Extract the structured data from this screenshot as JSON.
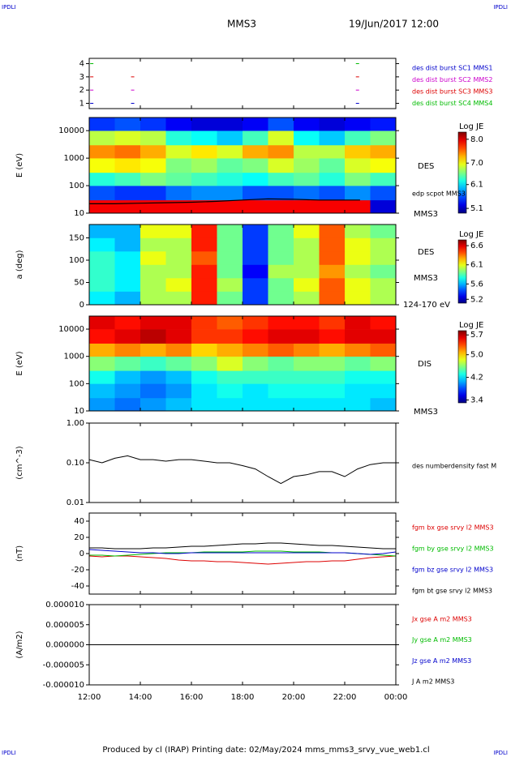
{
  "corner_labels": [
    "IPDLI",
    "IPDLI",
    "IPDLI",
    "IPDLI"
  ],
  "title": "MMS3",
  "date": "19/Jun/2017 12:00",
  "footer": "Produced by cl (IRAP)   Printing date: 02/May/2024   mms_mms3_srvy_vue_web1.cl",
  "time_axis": {
    "xlim": [
      12,
      24
    ],
    "xticks": [
      {
        "value": 12,
        "label": "12:00"
      },
      {
        "value": 14,
        "label": "14:00"
      },
      {
        "value": 16,
        "label": "16:00"
      },
      {
        "value": 18,
        "label": "18:00"
      },
      {
        "value": 20,
        "label": "20:00"
      },
      {
        "value": 22,
        "label": "22:00"
      },
      {
        "value": 24,
        "label": "00:00"
      }
    ]
  },
  "chart_data": [
    {
      "type": "event",
      "ylim": [
        0.6,
        4.4
      ],
      "yticks": [
        1,
        2,
        3,
        4
      ],
      "series": [
        {
          "name": "des dist burst SC1 MMS1",
          "color": "#0000cc",
          "level": 1,
          "x": [
            12.1,
            13.7,
            22.5
          ]
        },
        {
          "name": "des dist burst SC2 MMS2",
          "color": "#cc00cc",
          "level": 2,
          "x": [
            12.1,
            13.7,
            22.5
          ]
        },
        {
          "name": "des dist burst SC3 MMS3",
          "color": "#dd0000",
          "level": 3,
          "x": [
            12.1,
            13.7,
            22.5
          ]
        },
        {
          "name": "des dist burst SC4 MMS4",
          "color": "#00bb00",
          "level": 4,
          "x": [
            12.1,
            22.5
          ]
        }
      ]
    },
    {
      "type": "heatmap",
      "y_label": "E (eV)",
      "log": true,
      "colormap": "jet",
      "ylim": [
        10,
        30000
      ],
      "yticks": [
        10,
        100,
        1000,
        10000
      ],
      "labels": [
        "DES",
        "MMS3"
      ],
      "colorbar_title": "Log JE",
      "zlim": [
        4.9,
        8.3
      ],
      "zticks": [
        {
          "value": 8,
          "label": "8.0"
        },
        {
          "value": 7,
          "label": "7.0"
        },
        6.1,
        5.1
      ],
      "xbins": [
        12,
        13,
        14,
        15,
        16,
        17,
        18,
        19,
        20,
        21,
        22,
        23,
        24
      ],
      "ybins": [
        10,
        30,
        100,
        300,
        1000,
        3000,
        10000,
        30000
      ],
      "z": [
        [
          7.9,
          7.9,
          7.9,
          7.9,
          7.9,
          7.9,
          7.9,
          7.9,
          7.9,
          7.9,
          7.9,
          5.2
        ],
        [
          5.6,
          5.5,
          5.5,
          5.7,
          5.8,
          5.8,
          5.6,
          5.6,
          5.7,
          5.6,
          5.8,
          5.6
        ],
        [
          6.3,
          6.4,
          6.6,
          6.5,
          6.4,
          6.3,
          6.2,
          6.4,
          6.5,
          6.3,
          6.6,
          6.4
        ],
        [
          7.0,
          7.1,
          7.0,
          6.6,
          6.7,
          6.5,
          6.6,
          6.9,
          6.7,
          6.5,
          6.9,
          7.0
        ],
        [
          7.4,
          7.5,
          7.3,
          6.9,
          7.1,
          6.9,
          7.3,
          7.4,
          6.8,
          6.8,
          7.2,
          7.3
        ],
        [
          6.8,
          6.9,
          6.8,
          6.3,
          6.2,
          6.0,
          6.4,
          6.9,
          6.2,
          6.0,
          6.4,
          6.6
        ],
        [
          5.5,
          5.6,
          5.5,
          5.3,
          5.2,
          5.2,
          5.3,
          5.6,
          5.3,
          5.2,
          5.3,
          5.4
        ]
      ],
      "line": {
        "name": "edp scpot MMS3",
        "color": "#000000",
        "x": [
          12,
          13,
          14,
          15,
          16,
          17,
          18,
          19,
          20,
          21,
          22,
          22.6
        ],
        "values": [
          22,
          22,
          23,
          24,
          25,
          27,
          30,
          33,
          32,
          30,
          30,
          30
        ]
      }
    },
    {
      "type": "heatmap",
      "y_label": "a (deg)",
      "log": false,
      "colormap": "jet",
      "ylim": [
        0,
        180
      ],
      "yticks": [
        0,
        50,
        100,
        150
      ],
      "labels": [
        "DES",
        "MMS3",
        "124-170 eV"
      ],
      "colorbar_title": "Log JE",
      "zlim": [
        5.1,
        6.75
      ],
      "zticks": [
        6.6,
        6.1,
        5.6,
        5.2
      ],
      "xbins": [
        12,
        13,
        14,
        15,
        16,
        17,
        18,
        19,
        20,
        21,
        22,
        23,
        24
      ],
      "ybins": [
        0,
        30,
        60,
        90,
        120,
        150,
        180
      ],
      "z": [
        [
          5.7,
          5.6,
          6.0,
          6.0,
          6.5,
          5.9,
          5.4,
          5.9,
          6.0,
          6.4,
          6.1,
          6.0
        ],
        [
          5.8,
          5.7,
          6.0,
          6.1,
          6.5,
          6.0,
          5.4,
          5.9,
          6.1,
          6.4,
          6.1,
          6.0
        ],
        [
          5.8,
          5.7,
          6.0,
          6.0,
          6.5,
          5.9,
          5.3,
          6.0,
          6.0,
          6.3,
          6.0,
          5.9
        ],
        [
          5.8,
          5.7,
          6.1,
          6.0,
          6.4,
          5.9,
          5.4,
          5.9,
          6.0,
          6.4,
          6.1,
          6.0
        ],
        [
          5.7,
          5.6,
          6.0,
          6.0,
          6.5,
          5.9,
          5.4,
          5.9,
          6.0,
          6.4,
          6.1,
          6.0
        ],
        [
          5.6,
          5.6,
          6.1,
          6.1,
          6.5,
          5.9,
          5.4,
          5.9,
          6.1,
          6.4,
          6.0,
          5.9
        ]
      ]
    },
    {
      "type": "heatmap",
      "y_label": "E (eV)",
      "log": true,
      "colormap": "jet",
      "ylim": [
        10,
        30000
      ],
      "yticks": [
        10,
        100,
        1000,
        10000
      ],
      "labels": [
        "DIS",
        "MMS3"
      ],
      "colorbar_title": "Log JE",
      "zlim": [
        3.3,
        5.85
      ],
      "zticks": [
        5.7,
        {
          "value": 5,
          "label": "5.0"
        },
        4.2,
        3.4
      ],
      "xbins": [
        12,
        13,
        14,
        15,
        16,
        17,
        18,
        19,
        20,
        21,
        22,
        23,
        24
      ],
      "ybins": [
        10,
        30,
        100,
        300,
        1000,
        3000,
        10000,
        30000
      ],
      "z": [
        [
          4.0,
          3.9,
          4.0,
          4.1,
          4.2,
          4.2,
          4.2,
          4.2,
          4.2,
          4.2,
          4.2,
          4.1
        ],
        [
          4.1,
          4.0,
          3.9,
          4.0,
          4.2,
          4.3,
          4.2,
          4.3,
          4.3,
          4.3,
          4.2,
          4.2
        ],
        [
          4.3,
          4.1,
          4.0,
          4.1,
          4.3,
          4.4,
          4.4,
          4.4,
          4.4,
          4.4,
          4.3,
          4.3
        ],
        [
          4.6,
          4.5,
          4.4,
          4.5,
          4.6,
          4.8,
          4.6,
          4.5,
          4.6,
          4.6,
          4.5,
          4.6
        ],
        [
          5.1,
          5.2,
          5.1,
          5.2,
          5.0,
          5.1,
          5.2,
          5.3,
          5.2,
          5.1,
          5.2,
          5.3
        ],
        [
          5.5,
          5.6,
          5.7,
          5.6,
          5.4,
          5.4,
          5.5,
          5.6,
          5.6,
          5.5,
          5.6,
          5.6
        ],
        [
          5.6,
          5.5,
          5.6,
          5.6,
          5.4,
          5.3,
          5.4,
          5.5,
          5.5,
          5.4,
          5.6,
          5.5
        ]
      ]
    },
    {
      "type": "line",
      "y_label": "(cm^-3)",
      "log": true,
      "ylim": [
        0.01,
        1
      ],
      "yticks": [
        {
          "value": 0.01,
          "label": "0.01"
        },
        {
          "value": 0.1,
          "label": "0.10"
        },
        {
          "value": 1,
          "label": "1.00"
        }
      ],
      "x": [
        12,
        12.5,
        13,
        13.5,
        14,
        14.5,
        15,
        15.5,
        16,
        16.5,
        17,
        17.5,
        18,
        18.5,
        19,
        19.5,
        20,
        20.5,
        21,
        21.5,
        22,
        22.5,
        23,
        23.5,
        24
      ],
      "series": [
        {
          "name": "des numberdensity fast M",
          "color": "#000000",
          "values": [
            0.12,
            0.1,
            0.13,
            0.15,
            0.12,
            0.12,
            0.11,
            0.12,
            0.12,
            0.11,
            0.1,
            0.1,
            0.085,
            0.07,
            0.045,
            0.03,
            0.045,
            0.05,
            0.06,
            0.06,
            0.045,
            0.07,
            0.09,
            0.1,
            0.1
          ]
        }
      ]
    },
    {
      "type": "line",
      "y_label": "(nT)",
      "log": false,
      "ylim": [
        -50,
        50
      ],
      "yticks": [
        -40,
        -20,
        0,
        20,
        40
      ],
      "x": [
        12,
        12.5,
        13,
        13.5,
        14,
        14.5,
        15,
        15.5,
        16,
        16.5,
        17,
        17.5,
        18,
        18.5,
        19,
        19.5,
        20,
        20.5,
        21,
        21.5,
        22,
        22.5,
        23,
        23.5,
        24
      ],
      "series": [
        {
          "name": "fgm bx gse srvy l2 MMS3",
          "color": "#dd0000",
          "values": [
            -3,
            -4,
            -3,
            -3,
            -4,
            -5,
            -6,
            -8,
            -9,
            -9,
            -10,
            -10,
            -11,
            -12,
            -13,
            -12,
            -11,
            -10,
            -10,
            -9,
            -9,
            -7,
            -5,
            -4,
            -3
          ]
        },
        {
          "name": "fgm by gse srvy l2 MMS3",
          "color": "#00bb00",
          "values": [
            -2,
            -2,
            -3,
            -2,
            -1,
            0,
            1,
            1,
            1,
            2,
            2,
            2,
            2,
            3,
            3,
            3,
            2,
            2,
            2,
            1,
            1,
            0,
            -1,
            -2,
            -3
          ]
        },
        {
          "name": "fgm bz gse srvy l2 MMS3",
          "color": "#0000cc",
          "values": [
            5,
            4,
            3,
            2,
            1,
            1,
            0,
            0,
            1,
            1,
            1,
            1,
            1,
            1,
            1,
            1,
            1,
            1,
            1,
            1,
            1,
            0,
            -1,
            0,
            2
          ]
        },
        {
          "name": "fgm bt gse srvy l2 MMS3",
          "color": "#000000",
          "values": [
            7,
            7,
            6,
            6,
            6,
            7,
            7,
            8,
            9,
            9,
            10,
            11,
            12,
            12,
            13,
            13,
            12,
            11,
            10,
            10,
            9,
            8,
            7,
            6,
            6
          ]
        }
      ]
    },
    {
      "type": "line",
      "y_label": "(A/m2)",
      "log": false,
      "ylim": [
        -1e-05,
        1e-05
      ],
      "yticks": [
        {
          "value": -1e-05,
          "label": "-0.000010"
        },
        {
          "value": -5e-06,
          "label": "-0.000005"
        },
        {
          "value": 0,
          "label": "0.000000"
        },
        {
          "value": 5e-06,
          "label": "0.000005"
        },
        {
          "value": 1e-05,
          "label": "0.000010"
        }
      ],
      "x": [
        12,
        13,
        14,
        15,
        16,
        17,
        18,
        19,
        20,
        21,
        22,
        23,
        24
      ],
      "series": [
        {
          "name": "Jx gse A m2 MMS3",
          "color": "#dd0000",
          "values": [
            0,
            0,
            0,
            0,
            0,
            0,
            0,
            0,
            0,
            0,
            0,
            0,
            0
          ]
        },
        {
          "name": "Jy gse A m2 MMS3",
          "color": "#00bb00",
          "values": [
            0,
            0,
            0,
            0,
            0,
            0,
            0,
            0,
            0,
            0,
            0,
            0,
            0
          ]
        },
        {
          "name": "Jz gse A m2 MMS3",
          "color": "#0000cc",
          "values": [
            0,
            0,
            0,
            0,
            0,
            0,
            0,
            0,
            0,
            0,
            0,
            0,
            0
          ]
        },
        {
          "name": "J A m2 MMS3",
          "color": "#000000",
          "values": [
            0,
            0,
            0,
            0,
            0,
            0,
            0,
            0,
            0,
            0,
            0,
            0,
            0
          ]
        }
      ]
    }
  ]
}
